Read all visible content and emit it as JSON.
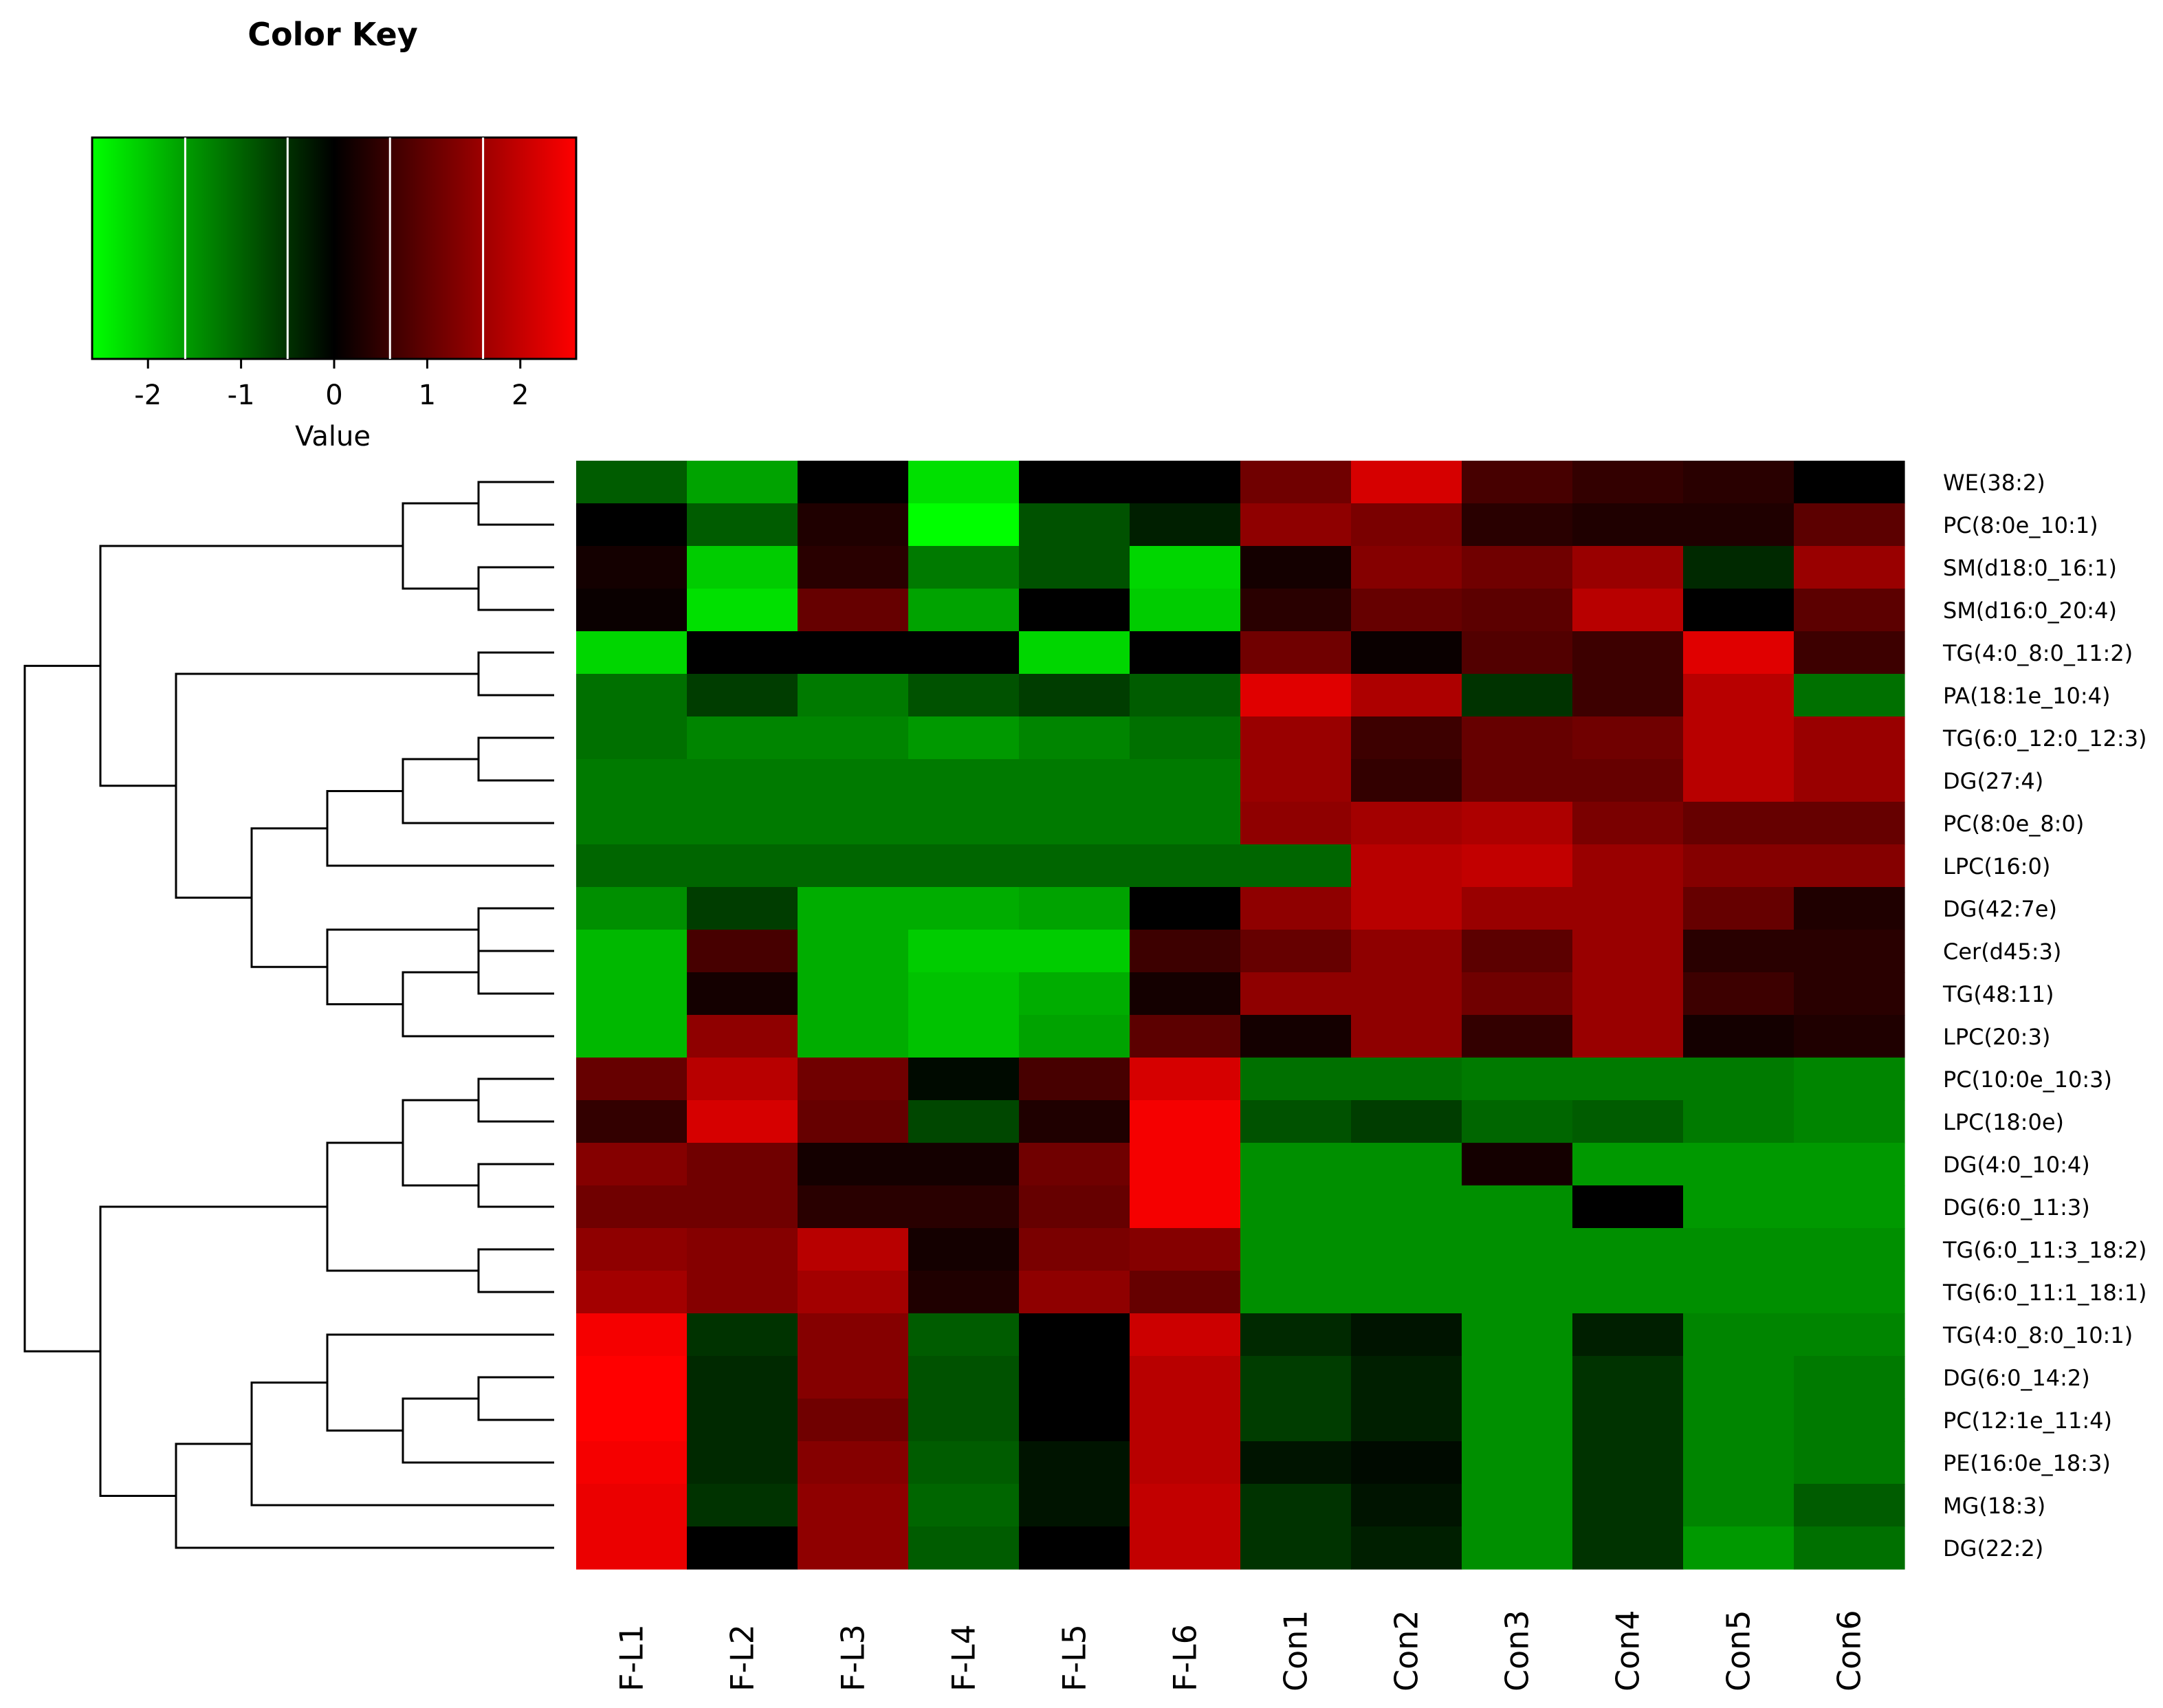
{
  "chart_data": {
    "type": "heatmap",
    "color_key": {
      "title": "Color Key",
      "label": "Value",
      "ticks": [
        -2,
        -1,
        0,
        1,
        2
      ],
      "range": [
        -2.6,
        2.6
      ],
      "colors": [
        "#00ff00",
        "#000000",
        "#ff0000"
      ],
      "breaks": [
        -1.6,
        -0.5,
        0.6,
        1.6
      ]
    },
    "columns": [
      "F-L1",
      "F-L2",
      "F-L3",
      "F-L4",
      "F-L5",
      "F-L6",
      "Con1",
      "Con2",
      "Con3",
      "Con4",
      "Con5",
      "Con6"
    ],
    "rows": [
      "WE(38:2)",
      "PC(8:0e_10:1)",
      "SM(d18:0_16:1)",
      "SM(d16:0_20:4)",
      "TG(4:0_8:0_11:2)",
      "PA(18:1e_10:4)",
      "TG(6:0_12:0_12:3)",
      "DG(27:4)",
      "PC(8:0e_8:0)",
      "LPC(16:0)",
      "DG(42:7e)",
      "Cer(d45:3)",
      "TG(48:11)",
      "LPC(20:3)",
      "PC(10:0e_10:3)",
      "LPC(18:0e)",
      "DG(4:0_10:4)",
      "DG(6:0_11:3)",
      "TG(6:0_11:3_18:2)",
      "TG(6:0_11:1_18:1)",
      "TG(4:0_8:0_10:1)",
      "DG(6:0_14:2)",
      "PC(12:1e_11:4)",
      "PE(16:0e_18:3)",
      "MG(18:3)",
      "DG(22:2)"
    ],
    "values": [
      [
        -0.9,
        -1.6,
        0.0,
        -2.2,
        0.0,
        0.0,
        1.1,
        2.1,
        0.7,
        0.5,
        0.4,
        0.0
      ],
      [
        0.0,
        -0.9,
        0.3,
        -2.5,
        -0.8,
        -0.3,
        1.4,
        1.2,
        0.4,
        0.3,
        0.3,
        0.9
      ],
      [
        0.2,
        -2.0,
        0.4,
        -1.2,
        -0.8,
        -2.1,
        0.2,
        1.3,
        1.1,
        1.5,
        -0.4,
        1.5
      ],
      [
        0.1,
        -2.2,
        1.0,
        -1.6,
        0.0,
        -2.0,
        0.4,
        1.0,
        0.9,
        1.8,
        0.0,
        0.9
      ],
      [
        -2.1,
        0.0,
        0.0,
        0.0,
        -2.1,
        0.0,
        1.1,
        0.1,
        0.8,
        0.6,
        2.2,
        0.6
      ],
      [
        -1.1,
        -0.6,
        -1.2,
        -0.8,
        -0.6,
        -0.9,
        2.2,
        1.7,
        -0.5,
        0.6,
        1.8,
        -1.1
      ],
      [
        -1.1,
        -1.3,
        -1.3,
        -1.5,
        -1.3,
        -1.1,
        1.5,
        0.6,
        1.0,
        1.1,
        1.8,
        1.5
      ],
      [
        -1.2,
        -1.2,
        -1.2,
        -1.2,
        -1.2,
        -1.2,
        1.5,
        0.5,
        1.0,
        1.0,
        1.8,
        1.5
      ],
      [
        -1.2,
        -1.2,
        -1.2,
        -1.2,
        -1.2,
        -1.2,
        1.4,
        1.6,
        1.7,
        1.2,
        1.0,
        1.0
      ],
      [
        -1.0,
        -1.0,
        -1.0,
        -1.0,
        -1.0,
        -1.0,
        -1.0,
        1.8,
        1.9,
        1.5,
        1.3,
        1.3
      ],
      [
        -1.4,
        -0.6,
        -1.7,
        -1.7,
        -1.6,
        0.0,
        1.4,
        1.8,
        1.5,
        1.5,
        1.0,
        0.3
      ],
      [
        -1.8,
        0.7,
        -1.7,
        -2.0,
        -2.0,
        0.6,
        1.0,
        1.4,
        0.9,
        1.5,
        0.4,
        0.4
      ],
      [
        -1.8,
        0.2,
        -1.7,
        -1.9,
        -1.7,
        0.2,
        1.4,
        1.4,
        1.1,
        1.5,
        0.6,
        0.4
      ],
      [
        -1.8,
        1.4,
        -1.7,
        -1.9,
        -1.6,
        0.9,
        0.2,
        1.4,
        0.5,
        1.5,
        0.2,
        0.3
      ],
      [
        1.0,
        1.8,
        1.1,
        -0.1,
        0.7,
        2.1,
        -1.1,
        -1.1,
        -1.2,
        -1.2,
        -1.2,
        -1.3
      ],
      [
        0.5,
        2.1,
        1.0,
        -0.7,
        0.3,
        2.4,
        -0.8,
        -0.6,
        -1.0,
        -0.9,
        -1.2,
        -1.3
      ],
      [
        1.3,
        1.1,
        0.2,
        0.2,
        1.1,
        2.4,
        -1.4,
        -1.4,
        0.2,
        -1.5,
        -1.5,
        -1.5
      ],
      [
        1.1,
        1.1,
        0.4,
        0.4,
        1.0,
        2.4,
        -1.4,
        -1.4,
        -1.4,
        0.0,
        -1.5,
        -1.5
      ],
      [
        1.4,
        1.3,
        1.8,
        0.2,
        1.2,
        1.3,
        -1.4,
        -1.4,
        -1.4,
        -1.4,
        -1.4,
        -1.4
      ],
      [
        1.6,
        1.3,
        1.6,
        0.3,
        1.4,
        1.0,
        -1.4,
        -1.4,
        -1.4,
        -1.4,
        -1.4,
        -1.4
      ],
      [
        2.4,
        -0.5,
        1.3,
        -0.9,
        0.0,
        2.0,
        -0.4,
        -0.2,
        -1.4,
        -0.3,
        -1.3,
        -1.3
      ],
      [
        2.5,
        -0.4,
        1.3,
        -0.8,
        0.0,
        1.8,
        -0.6,
        -0.3,
        -1.4,
        -0.5,
        -1.3,
        -1.2
      ],
      [
        2.5,
        -0.4,
        1.1,
        -0.8,
        0.0,
        1.8,
        -0.6,
        -0.3,
        -1.4,
        -0.5,
        -1.3,
        -1.2
      ],
      [
        2.4,
        -0.4,
        1.3,
        -0.9,
        -0.2,
        1.8,
        -0.2,
        -0.1,
        -1.4,
        -0.5,
        -1.3,
        -1.2
      ],
      [
        2.3,
        -0.5,
        1.4,
        -1.0,
        -0.2,
        1.9,
        -0.5,
        -0.2,
        -1.4,
        -0.5,
        -1.3,
        -0.9
      ],
      [
        2.3,
        0.0,
        1.4,
        -0.9,
        0.0,
        1.9,
        -0.5,
        -0.3,
        -1.4,
        -0.5,
        -1.5,
        -1.1
      ]
    ],
    "row_dendrogram": [
      [
        0,
        1
      ],
      [
        2,
        3
      ],
      [
        26,
        27
      ],
      [
        6,
        7
      ],
      [
        29,
        8
      ],
      [
        30,
        9
      ],
      [
        10,
        11
      ],
      [
        11,
        12
      ],
      [
        33,
        13
      ],
      [
        32,
        34
      ],
      [
        31,
        35
      ],
      [
        4,
        5
      ],
      [
        37,
        36
      ],
      [
        28,
        38
      ],
      [
        14,
        15
      ],
      [
        16,
        17
      ],
      [
        40,
        41
      ],
      [
        18,
        19
      ],
      [
        42,
        43
      ],
      [
        21,
        22
      ],
      [
        45,
        23
      ],
      [
        46,
        20
      ],
      [
        47,
        24
      ],
      [
        48,
        25
      ],
      [
        44,
        49
      ],
      [
        39,
        50
      ]
    ]
  }
}
